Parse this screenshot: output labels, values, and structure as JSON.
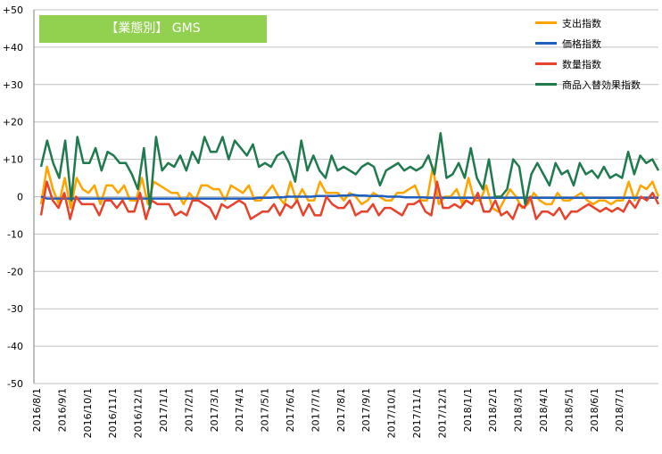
{
  "title": "【業態別】 GMS",
  "colors": {
    "title_bg": "#92d050",
    "title_text": "#ffffff",
    "grid": "#bfbfbf",
    "axis": "#7f7f7f"
  },
  "chart_data": {
    "type": "line",
    "title": "【業態別】 GMS",
    "xlabel": "",
    "ylabel": "",
    "ylim": [
      -50,
      50
    ],
    "yticks": [
      "+50",
      "+40",
      "+30",
      "+20",
      "+10",
      "0",
      "-10",
      "-20",
      "-30",
      "-40",
      "-50"
    ],
    "ytick_values": [
      50,
      40,
      30,
      20,
      10,
      0,
      -10,
      -20,
      -30,
      -40,
      -50
    ],
    "grid": true,
    "legend_position": "top-right",
    "xticks": [
      "2016/8/1",
      "2016/9/1",
      "2016/10/1",
      "2016/11/1",
      "2016/12/1",
      "2017/1/1",
      "2017/2/1",
      "2017/3/1",
      "2017/4/1",
      "2017/5/1",
      "2017/6/1",
      "2017/7/1",
      "2017/8/1",
      "2017/9/1",
      "2017/10/1",
      "2017/11/1",
      "2017/12/1",
      "2018/1/1",
      "2018/2/1",
      "2018/3/1",
      "2018/4/1",
      "2018/5/1",
      "2018/6/1",
      "2018/7/1"
    ],
    "series": [
      {
        "name": "支出指数",
        "color": "#ffa500",
        "values": [
          -2,
          8,
          2,
          -2,
          5,
          -3,
          5,
          2,
          1,
          3,
          -2,
          3,
          3,
          1,
          3,
          -1,
          -1,
          5,
          -2,
          4,
          3,
          2,
          1,
          1,
          -2,
          1,
          -1,
          3,
          3,
          2,
          2,
          -1,
          3,
          2,
          1,
          3,
          -1,
          -1,
          1,
          3,
          0,
          -2,
          4,
          -1,
          2,
          -1,
          -1,
          4,
          1,
          1,
          1,
          -1,
          1,
          0,
          -2,
          -1,
          1,
          0,
          -1,
          -1,
          1,
          1,
          2,
          3,
          -1,
          -1,
          8,
          -2,
          0,
          0,
          2,
          -2,
          5,
          -1,
          -1,
          3,
          -3,
          -4,
          -1,
          2,
          0,
          -3,
          -2,
          1,
          -1,
          -2,
          -2,
          1,
          -1,
          -1,
          0,
          1,
          -1,
          -2,
          -1,
          -1,
          -2,
          -1,
          -1,
          4,
          -1,
          3,
          2,
          4,
          0
        ]
      },
      {
        "name": "価格指数",
        "color": "#1f5fbf",
        "values": [
          0,
          -0.5,
          -0.5,
          -0.5,
          -0.5,
          -0.5,
          -0.5,
          -0.5,
          -0.5,
          -0.5,
          -0.5,
          -0.5,
          -0.5,
          -0.5,
          -0.5,
          -0.5,
          -0.5,
          -0.5,
          -0.5,
          -0.5,
          -0.5,
          -0.5,
          -0.5,
          -0.5,
          -0.5,
          -0.5,
          -0.5,
          -0.5,
          -0.5,
          -0.5,
          -0.5,
          -0.5,
          -0.5,
          -0.5,
          -0.5,
          -0.5,
          -0.5,
          -0.3,
          -0.3,
          -0.3,
          -0.2,
          -0.2,
          0,
          0,
          0,
          0,
          0,
          0.2,
          0.2,
          0.2,
          0.2,
          0.3,
          0.3,
          0.5,
          0.3,
          0.3,
          0.2,
          0.2,
          0.2,
          0,
          0,
          0,
          -0.2,
          -0.2,
          -0.2,
          -0.2,
          -0.3,
          -0.3,
          -0.3,
          -0.3,
          -0.3,
          -0.3,
          -0.3,
          -0.3,
          -0.3,
          -0.3,
          -0.3,
          -0.3,
          -0.3,
          -0.3,
          -0.3,
          -0.3,
          -0.3,
          -0.3,
          -0.3,
          -0.3,
          -0.3,
          -0.3,
          -0.3,
          -0.3,
          -0.3,
          -0.3,
          -0.3,
          -0.3,
          -0.3,
          -0.3,
          -0.3,
          -0.3,
          -0.3,
          -0.3,
          -0.3,
          -0.3,
          -0.3,
          -0.3,
          -0.3,
          -0.3
        ]
      },
      {
        "name": "数量指数",
        "color": "#e8412c",
        "values": [
          -5,
          4,
          -1,
          -3,
          1,
          -6,
          0,
          -2,
          -2,
          -2,
          -5,
          -1,
          -1,
          -3,
          -1,
          -4,
          -4,
          1,
          -6,
          -1,
          -2,
          -2,
          -2,
          -5,
          -4,
          -5,
          -1,
          -1,
          -2,
          -3,
          -6,
          -2,
          -3,
          -2,
          -1,
          -2,
          -6,
          -5,
          -4,
          -4,
          -2,
          -5,
          -2,
          -3,
          -1,
          -5,
          -2,
          -5,
          -5,
          0,
          -2,
          -3,
          -3,
          -1,
          -5,
          -4,
          -4,
          -2,
          -5,
          -3,
          -3,
          -4,
          -5,
          -2,
          -2,
          -1,
          -4,
          -5,
          4,
          -3,
          -3,
          -2,
          -3,
          -1,
          -2,
          1,
          -4,
          -4,
          -1,
          -5,
          -4,
          -6,
          -2,
          -3,
          0,
          -6,
          -4,
          -4,
          -5,
          -3,
          -6,
          -4,
          -4,
          -3,
          -2,
          -3,
          -4,
          -3,
          -4,
          -3,
          -4,
          -1,
          -3,
          0,
          -1,
          1,
          -2
        ]
      },
      {
        "name": "商品入替効果指数",
        "color": "#1f7a4d",
        "values": [
          8,
          15,
          9,
          5,
          15,
          -1,
          16,
          9,
          9,
          13,
          7,
          12,
          11,
          9,
          9,
          6,
          2,
          13,
          -3,
          16,
          7,
          9,
          8,
          11,
          7,
          12,
          9,
          16,
          12,
          12,
          16,
          10,
          15,
          13,
          11,
          14,
          8,
          9,
          8,
          11,
          12,
          9,
          4,
          15,
          7,
          11,
          7,
          5,
          11,
          7,
          8,
          7,
          6,
          8,
          9,
          8,
          3,
          7,
          8,
          9,
          7,
          8,
          7,
          8,
          11,
          6,
          17,
          5,
          6,
          9,
          5,
          13,
          5,
          2,
          10,
          0,
          0,
          2,
          10,
          8,
          -2,
          6,
          9,
          6,
          3,
          9,
          6,
          7,
          3,
          9,
          6,
          7,
          5,
          8,
          5,
          6,
          5,
          12,
          6,
          11,
          9,
          10,
          7
        ]
      }
    ]
  }
}
